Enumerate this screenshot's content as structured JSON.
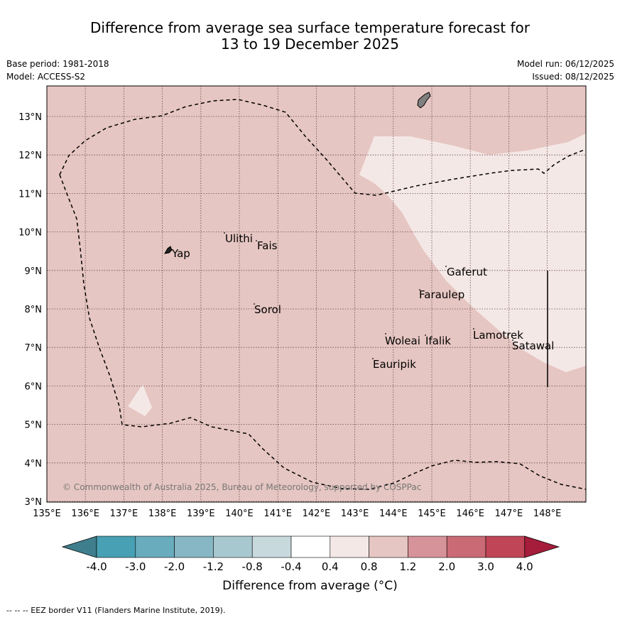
{
  "header": {
    "title_line1": "Difference from average sea surface temperature forecast for",
    "title_line2": "13 to 19 December 2025",
    "base_period": "Base period: 1981-2018",
    "model": "Model: ACCESS-S2",
    "model_run": "Model run: 06/12/2025",
    "issued": "Issued: 08/12/2025"
  },
  "map": {
    "lon_ticks": [
      "135°E",
      "136°E",
      "137°E",
      "138°E",
      "139°E",
      "140°E",
      "141°E",
      "142°E",
      "143°E",
      "144°E",
      "145°E",
      "146°E",
      "147°E",
      "148°E"
    ],
    "lat_ticks": [
      "3°N",
      "4°N",
      "5°N",
      "6°N",
      "7°N",
      "8°N",
      "9°N",
      "10°N",
      "11°N",
      "12°N",
      "13°N"
    ],
    "places": [
      "Yap",
      "Ulithi",
      "Fais",
      "Sorol",
      "Gaferut",
      "Faraulep",
      "Woleai",
      "Ifalik",
      "Eauripik",
      "Lamotrek",
      "Satawal"
    ],
    "copyright": "© Commonwealth of Australia 2025, Bureau of Meteorology, supported by COSPPac",
    "colors": {
      "bin_0p8_1p2": "#e6c6c2",
      "bin_0p4_0p8": "#f4e8e6",
      "land": "#808080"
    }
  },
  "colorbar": {
    "labels": [
      "-4.0",
      "-3.0",
      "-2.0",
      "-1.2",
      "-0.8",
      "-0.4",
      "0.4",
      "0.8",
      "1.2",
      "2.0",
      "3.0",
      "4.0"
    ],
    "colors": [
      "#3f7e8c",
      "#47a0b3",
      "#68acbd",
      "#87b6c4",
      "#a8c8d0",
      "#c8d9dd",
      "#ffffff",
      "#f4e8e6",
      "#e6c6c2",
      "#d7939a",
      "#ca6a75",
      "#c04556",
      "#a51d3b"
    ],
    "title": "Difference from average (°C)"
  },
  "footer": {
    "legend": "--  --  -- EEZ border V11 (Flanders Marine Institute, 2019)."
  }
}
